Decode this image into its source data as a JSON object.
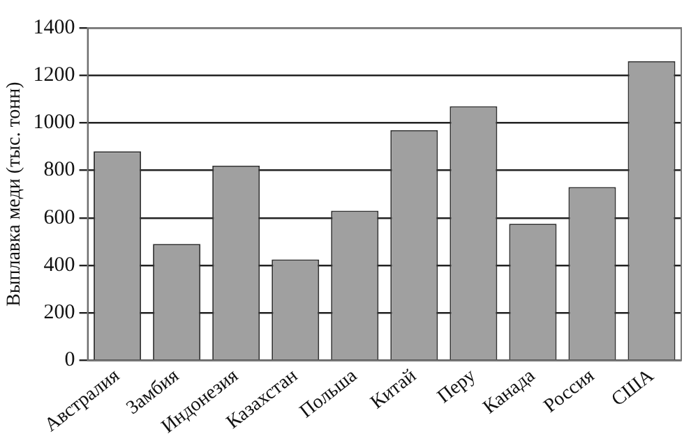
{
  "chart_data": {
    "type": "bar",
    "ylabel": "Выплавка меди (тыс. тонн)",
    "categories": [
      "Австралия",
      "Замбия",
      "Индонезия",
      "Казахстан",
      "Польша",
      "Китай",
      "Перу",
      "Канада",
      "Россия",
      "США"
    ],
    "values": [
      880,
      490,
      820,
      425,
      630,
      970,
      1070,
      575,
      730,
      1260
    ],
    "color": "#a0a0a0",
    "ylim": [
      0,
      1400
    ],
    "yticks": [
      0,
      200,
      400,
      600,
      800,
      1000,
      1200,
      1400
    ],
    "grid": "y",
    "legend": false
  }
}
